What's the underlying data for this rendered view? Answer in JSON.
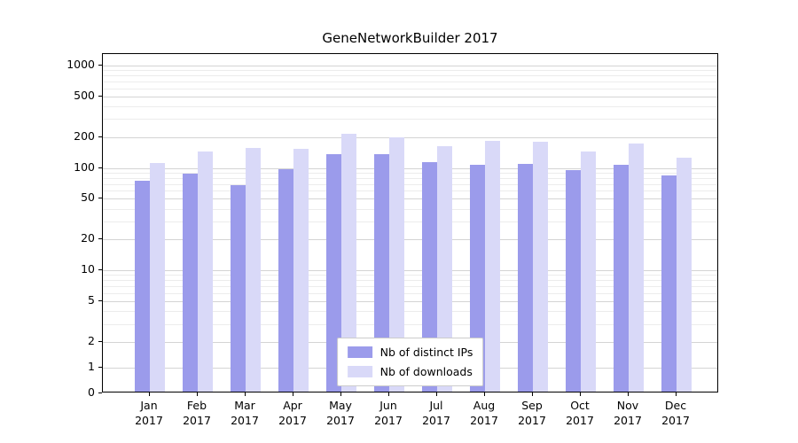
{
  "chart_data": {
    "type": "bar",
    "title": "GeneNetworkBuilder 2017",
    "months": [
      "Jan",
      "Feb",
      "Mar",
      "Apr",
      "May",
      "Jun",
      "Jul",
      "Aug",
      "Sep",
      "Oct",
      "Nov",
      "Dec"
    ],
    "year": "2017",
    "series": [
      {
        "name": "Nb of distinct IPs",
        "color": "#9b9beb",
        "values": [
          72,
          85,
          65,
          93,
          130,
          132,
          110,
          103,
          105,
          92,
          103,
          82
        ]
      },
      {
        "name": "Nb of downloads",
        "color": "#d9d9f8",
        "values": [
          108,
          138,
          152,
          148,
          207,
          190,
          157,
          178,
          172,
          140,
          168,
          122
        ]
      }
    ],
    "yscale": "symlog",
    "yticks": [
      0,
      1,
      2,
      5,
      10,
      20,
      50,
      100,
      200,
      500,
      1000
    ],
    "ylim": [
      0,
      1300
    ],
    "grid": true,
    "legend_position": "lower center"
  }
}
